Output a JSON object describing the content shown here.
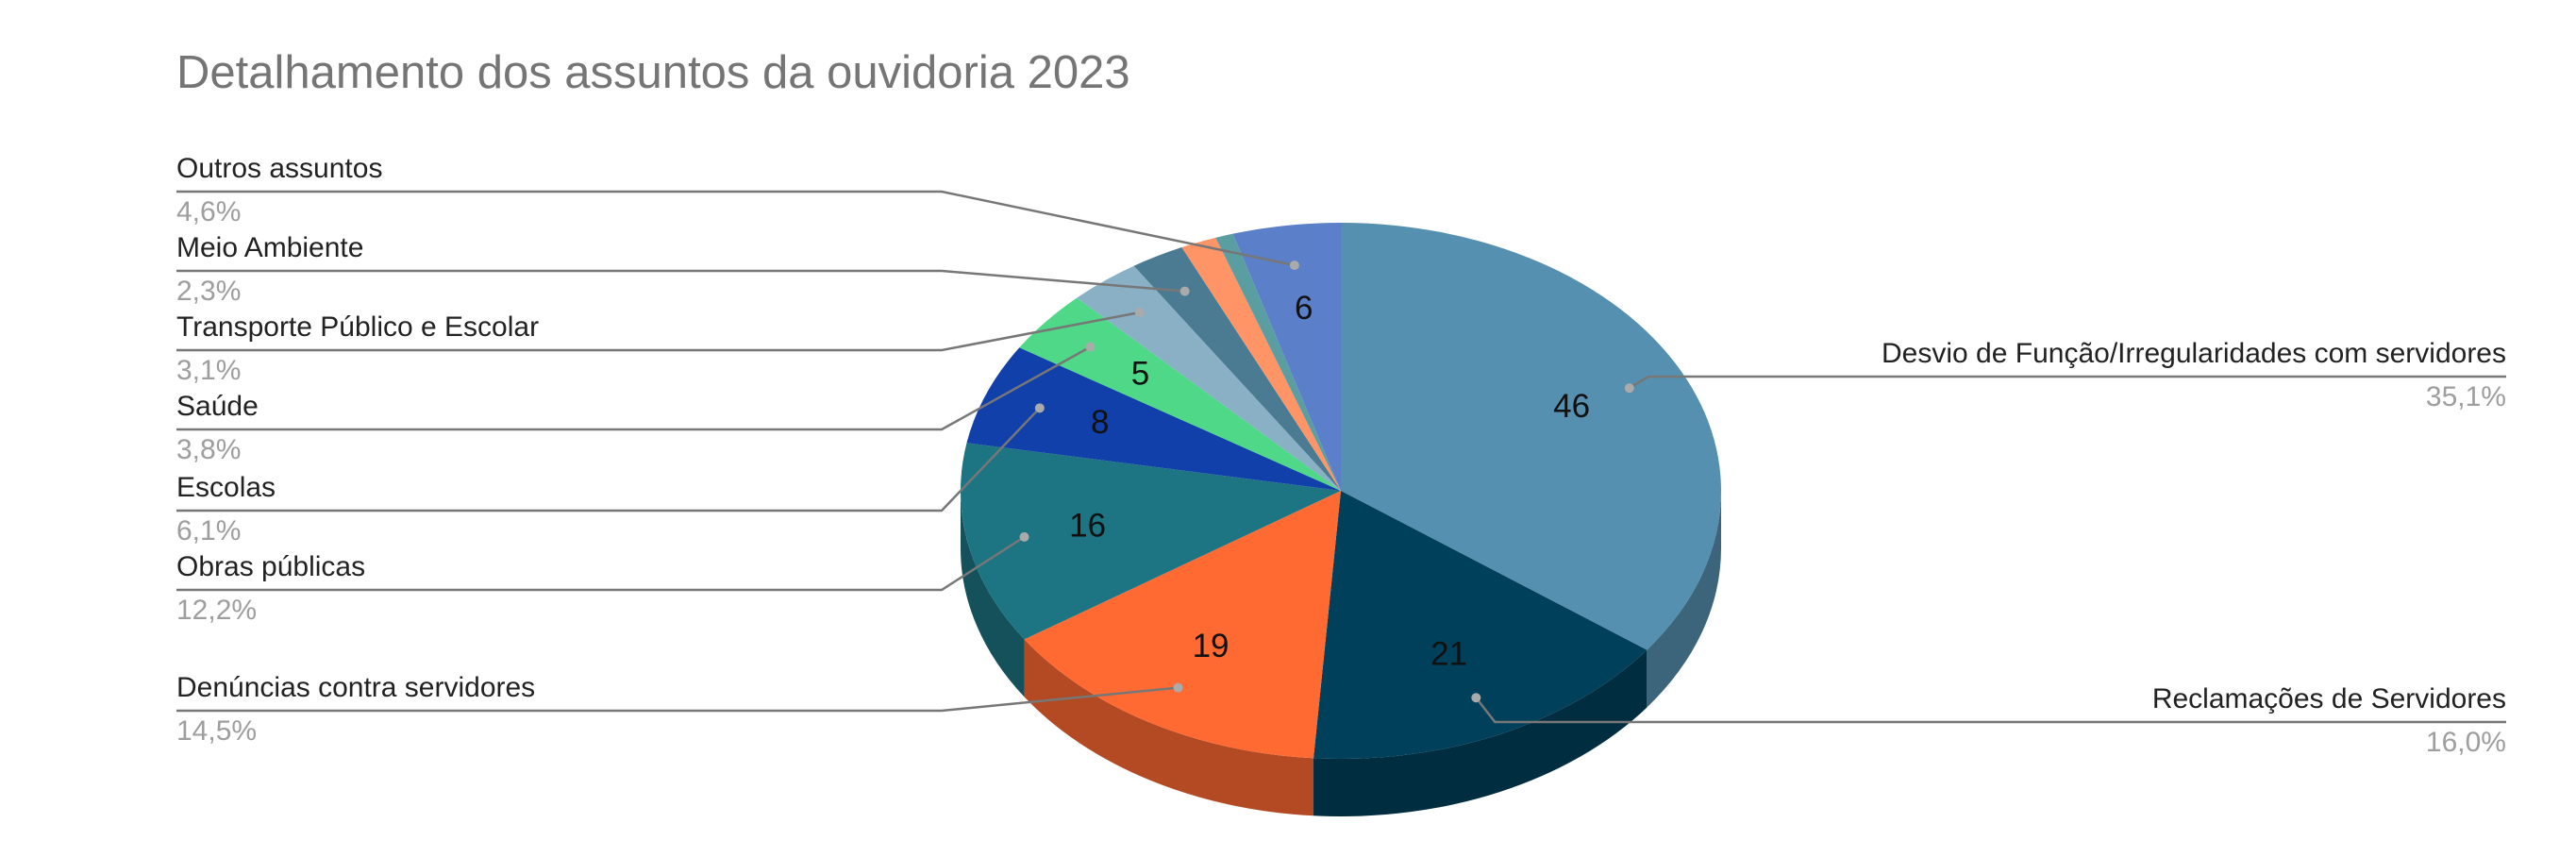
{
  "chart_data": {
    "type": "pie3d",
    "title": "Detalhamento dos assuntos da ouvidoria 2023",
    "categories": [
      "Desvio de Função/Irregularidades com servidores",
      "Reclamações de Servidores",
      "Denúncias contra servidores",
      "Obras públicas",
      "Escolas",
      "Saúde",
      "Transporte Público e Escolar",
      "Meio Ambiente",
      null,
      null,
      "Outros assuntos"
    ],
    "values": [
      46,
      21,
      19,
      16,
      8,
      5,
      4,
      3,
      2,
      1,
      6
    ],
    "percent_labels": [
      "35,1%",
      "16,0%",
      "14,5%",
      "12,2%",
      "6,1%",
      "3,8%",
      "3,1%",
      "2,3%",
      null,
      null,
      "4,6%"
    ],
    "colors": [
      "#5690b0",
      "#00405a",
      "#ff6a33",
      "#1d7482",
      "#1140aa",
      "#4ed887",
      "#8ab0c6",
      "#4a7b92",
      "#ff9466",
      "#5a9ea2",
      "#5b7fc9"
    ]
  }
}
